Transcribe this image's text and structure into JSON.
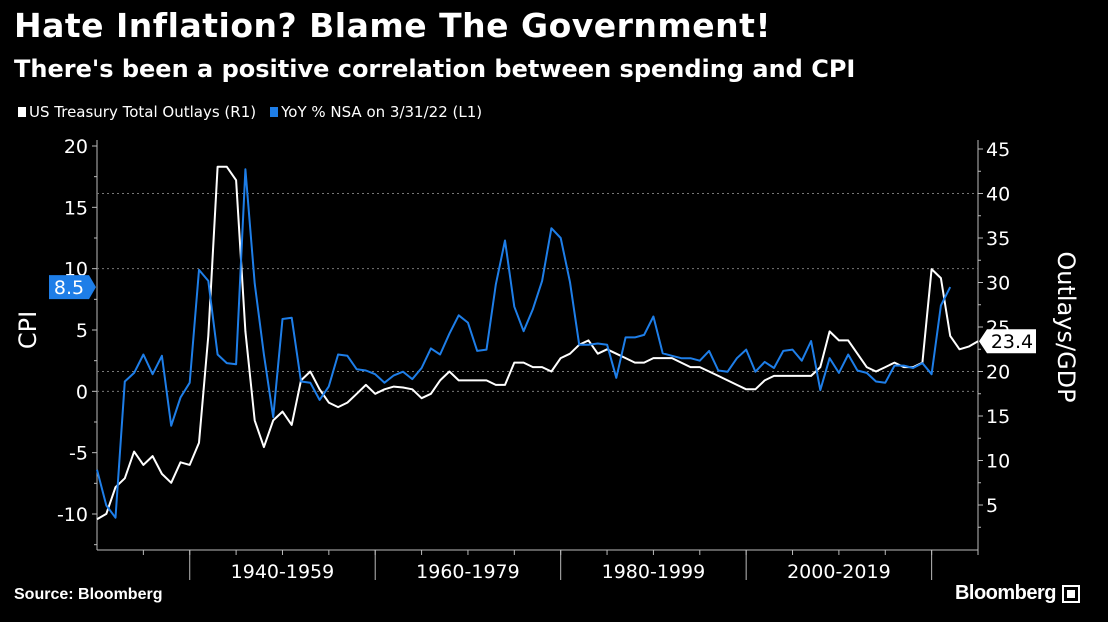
{
  "title": "Hate Inflation? Blame The Government!",
  "subtitle": "There's been a positive correlation between spending and CPI",
  "source": "Source: Bloomberg",
  "brand": "Bloomberg",
  "colors": {
    "cpi": "#1e7ee8",
    "outlays": "#ffffff",
    "background": "#000000",
    "grid": "#666666"
  },
  "chart_data": {
    "type": "line",
    "title": "Hate Inflation? Blame The Government!",
    "subtitle": "There's been a positive correlation between spending and CPI",
    "x_range": [
      1930,
      2025
    ],
    "x_period_labels": [
      {
        "label": "1940-1959",
        "start": 1940,
        "end": 1959
      },
      {
        "label": "1960-1979",
        "start": 1960,
        "end": 1979
      },
      {
        "label": "1980-1999",
        "start": 1980,
        "end": 1999
      },
      {
        "label": "2000-2019",
        "start": 2000,
        "end": 2019
      }
    ],
    "left_axis": {
      "label": "CPI",
      "ticks": [
        "20",
        "15",
        "10",
        "5",
        "0",
        "-5",
        "-10"
      ],
      "range": [
        -12.5,
        21
      ]
    },
    "right_axis": {
      "label": "Outlays/GDP",
      "ticks": [
        "45",
        "40",
        "35",
        "30",
        "25",
        "20",
        "15",
        "10",
        "5"
      ],
      "range": [
        0,
        46
      ]
    },
    "gridlines": "horizontal dashed at left 10 and 0, right 20 and 40",
    "series": [
      {
        "name": "US Treasury Total Outlays (R1)",
        "legend_label": "US Treasury Total Outlays (R1)",
        "axis": "right",
        "color": "#ffffff",
        "last_value_label": "23.4",
        "x": [
          1930,
          1931,
          1932,
          1933,
          1934,
          1935,
          1936,
          1937,
          1938,
          1939,
          1940,
          1941,
          1942,
          1943,
          1944,
          1945,
          1946,
          1947,
          1948,
          1949,
          1950,
          1951,
          1952,
          1953,
          1954,
          1955,
          1956,
          1957,
          1958,
          1959,
          1960,
          1961,
          1962,
          1963,
          1964,
          1965,
          1966,
          1967,
          1968,
          1969,
          1970,
          1971,
          1972,
          1973,
          1974,
          1975,
          1976,
          1977,
          1978,
          1979,
          1980,
          1981,
          1982,
          1983,
          1984,
          1985,
          1986,
          1987,
          1988,
          1989,
          1990,
          1991,
          1992,
          1993,
          1994,
          1995,
          1996,
          1997,
          1998,
          1999,
          2000,
          2001,
          2002,
          2003,
          2004,
          2005,
          2006,
          2007,
          2008,
          2009,
          2010,
          2011,
          2012,
          2013,
          2014,
          2015,
          2016,
          2017,
          2018,
          2019,
          2020,
          2021,
          2022,
          2023,
          2024,
          2025
        ],
        "values": [
          3.4,
          4.0,
          7.0,
          8.0,
          11.0,
          9.5,
          10.5,
          8.5,
          7.5,
          9.8,
          9.5,
          12.0,
          24.0,
          43.0,
          43.0,
          41.5,
          24.5,
          14.5,
          11.5,
          14.5,
          15.5,
          14.0,
          19.0,
          20.0,
          18.0,
          16.5,
          16.0,
          16.5,
          17.5,
          18.5,
          17.5,
          18.0,
          18.3,
          18.2,
          18.0,
          17.0,
          17.5,
          19.0,
          20.0,
          19.0,
          19.0,
          19.0,
          19.0,
          18.5,
          18.5,
          21.0,
          21.0,
          20.5,
          20.5,
          20.0,
          21.5,
          22.0,
          23.0,
          23.5,
          22.0,
          22.5,
          22.0,
          21.5,
          21.0,
          21.0,
          21.5,
          21.5,
          21.5,
          21.0,
          20.5,
          20.5,
          20.0,
          19.5,
          19.0,
          18.5,
          18.0,
          18.0,
          19.0,
          19.5,
          19.5,
          19.5,
          19.5,
          19.5,
          20.5,
          24.5,
          23.5,
          23.5,
          22.0,
          20.5,
          20.0,
          20.5,
          21.0,
          20.5,
          20.5,
          21.0,
          31.5,
          30.5,
          24.0,
          22.5,
          22.8,
          23.4
        ]
      },
      {
        "name": "YoY % NSA on 3/31/22 (L1)",
        "legend_label": "YoY % NSA on 3/31/22 (L1)",
        "axis": "left",
        "color": "#1e7ee8",
        "last_value_label": "8.5",
        "x": [
          1930,
          1931,
          1932,
          1933,
          1934,
          1935,
          1936,
          1937,
          1938,
          1939,
          1940,
          1941,
          1942,
          1943,
          1944,
          1945,
          1946,
          1947,
          1948,
          1949,
          1950,
          1951,
          1952,
          1953,
          1954,
          1955,
          1956,
          1957,
          1958,
          1959,
          1960,
          1961,
          1962,
          1963,
          1964,
          1965,
          1966,
          1967,
          1968,
          1969,
          1970,
          1971,
          1972,
          1973,
          1974,
          1975,
          1976,
          1977,
          1978,
          1979,
          1980,
          1981,
          1982,
          1983,
          1984,
          1985,
          1986,
          1987,
          1988,
          1989,
          1990,
          1991,
          1992,
          1993,
          1994,
          1995,
          1996,
          1997,
          1998,
          1999,
          2000,
          2001,
          2002,
          2003,
          2004,
          2005,
          2006,
          2007,
          2008,
          2009,
          2010,
          2011,
          2012,
          2013,
          2014,
          2015,
          2016,
          2017,
          2018,
          2019,
          2020,
          2021,
          2022
        ],
        "values": [
          -6.4,
          -9.3,
          -10.3,
          0.8,
          1.5,
          3.0,
          1.4,
          2.9,
          -2.8,
          -0.5,
          0.7,
          9.9,
          9.0,
          3.0,
          2.3,
          2.2,
          18.1,
          8.8,
          3.0,
          -2.1,
          5.9,
          6.0,
          0.8,
          0.7,
          -0.7,
          0.4,
          3.0,
          2.9,
          1.8,
          1.7,
          1.4,
          0.7,
          1.3,
          1.6,
          1.0,
          1.9,
          3.5,
          3.0,
          4.7,
          6.2,
          5.6,
          3.3,
          3.4,
          8.7,
          12.3,
          6.9,
          4.9,
          6.7,
          9.0,
          13.3,
          12.5,
          8.9,
          3.8,
          3.8,
          3.9,
          3.8,
          1.1,
          4.4,
          4.4,
          4.6,
          6.1,
          3.1,
          2.9,
          2.7,
          2.7,
          2.5,
          3.3,
          1.7,
          1.6,
          2.7,
          3.4,
          1.6,
          2.4,
          1.9,
          3.3,
          3.4,
          2.5,
          4.1,
          0.1,
          2.7,
          1.5,
          3.0,
          1.7,
          1.5,
          0.8,
          0.7,
          2.1,
          2.1,
          1.9,
          2.3,
          1.4,
          7.0,
          8.5
        ]
      }
    ],
    "legend": [
      "US Treasury Total Outlays (R1)",
      "YoY % NSA on 3/31/22 (L1)"
    ],
    "legend_position": "top-left"
  }
}
